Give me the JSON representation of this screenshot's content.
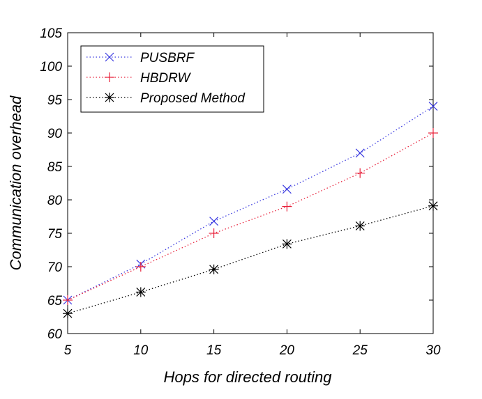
{
  "chart_data": {
    "type": "line",
    "xlabel": "Hops for directed routing",
    "ylabel": "Communication overhead",
    "xlim": [
      5,
      30
    ],
    "ylim": [
      60,
      105
    ],
    "xticks": [
      5,
      10,
      15,
      20,
      25,
      30
    ],
    "yticks": [
      60,
      65,
      70,
      75,
      80,
      85,
      90,
      95,
      100,
      105
    ],
    "x": [
      5,
      10,
      15,
      20,
      25,
      30
    ],
    "grid": false,
    "legend_position": "top-left",
    "series": [
      {
        "name": "PUSBRF",
        "values": [
          65,
          70.4,
          76.8,
          81.6,
          87,
          94
        ],
        "color": "#3a3ae0",
        "marker": "x",
        "line_style": "dotted"
      },
      {
        "name": "HBDRW",
        "values": [
          65,
          70,
          75,
          79,
          84,
          90
        ],
        "color": "#e8203a",
        "marker": "+",
        "line_style": "dotted"
      },
      {
        "name": "Proposed Method",
        "values": [
          63,
          66.2,
          69.6,
          73.4,
          76.1,
          79.1
        ],
        "color": "#000000",
        "marker": "asterisk",
        "line_style": "dotted"
      }
    ]
  }
}
